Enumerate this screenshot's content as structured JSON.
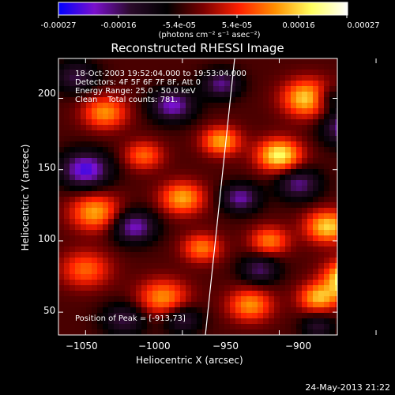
{
  "colorbar": {
    "ticks": [
      "-0.00027",
      "-0.00016",
      "-5.4e-05",
      "5.4e-05",
      "0.00016",
      "0.00027"
    ],
    "units": "(photons cm⁻² s⁻¹ asec⁻²)",
    "range": [
      -0.00027,
      0.00027
    ],
    "colors": [
      "#0000ff",
      "#7a10cc",
      "#2a0a2a",
      "#000000",
      "#7a0000",
      "#ff2000",
      "#ff9000",
      "#ffff60",
      "#ffffff"
    ]
  },
  "chart_data": {
    "type": "heatmap",
    "title": "Reconstructed RHESSI Image",
    "xlabel": "Heliocentric X (arcsec)",
    "ylabel": "Heliocentric Y (arcsec)",
    "xlim": [
      -1064,
      -920
    ],
    "ylim": [
      34,
      228
    ],
    "xticks": [
      -1050,
      -1000,
      -950,
      -900
    ],
    "xtick_labels": [
      "−1050",
      "−1000",
      "−950",
      "−900"
    ],
    "yticks": [
      50,
      100,
      150,
      200
    ],
    "ytick_labels": [
      "50",
      "100",
      "150",
      "200"
    ],
    "annotations": [
      "18-Oct-2003 19:52:04.000 to 19:53:04.000",
      "Detectors: 4F 5F 6F 7F 8F, Att 0",
      "Energy Range: 25.0 - 50.0 keV",
      "Clean    Total counts: 781."
    ],
    "peak_label": "Position of Peak = [-913,73]",
    "peak": [
      -913,
      73
    ],
    "limb_line": true,
    "grid": false
  },
  "timestamp": "24-May-2013 21:22"
}
